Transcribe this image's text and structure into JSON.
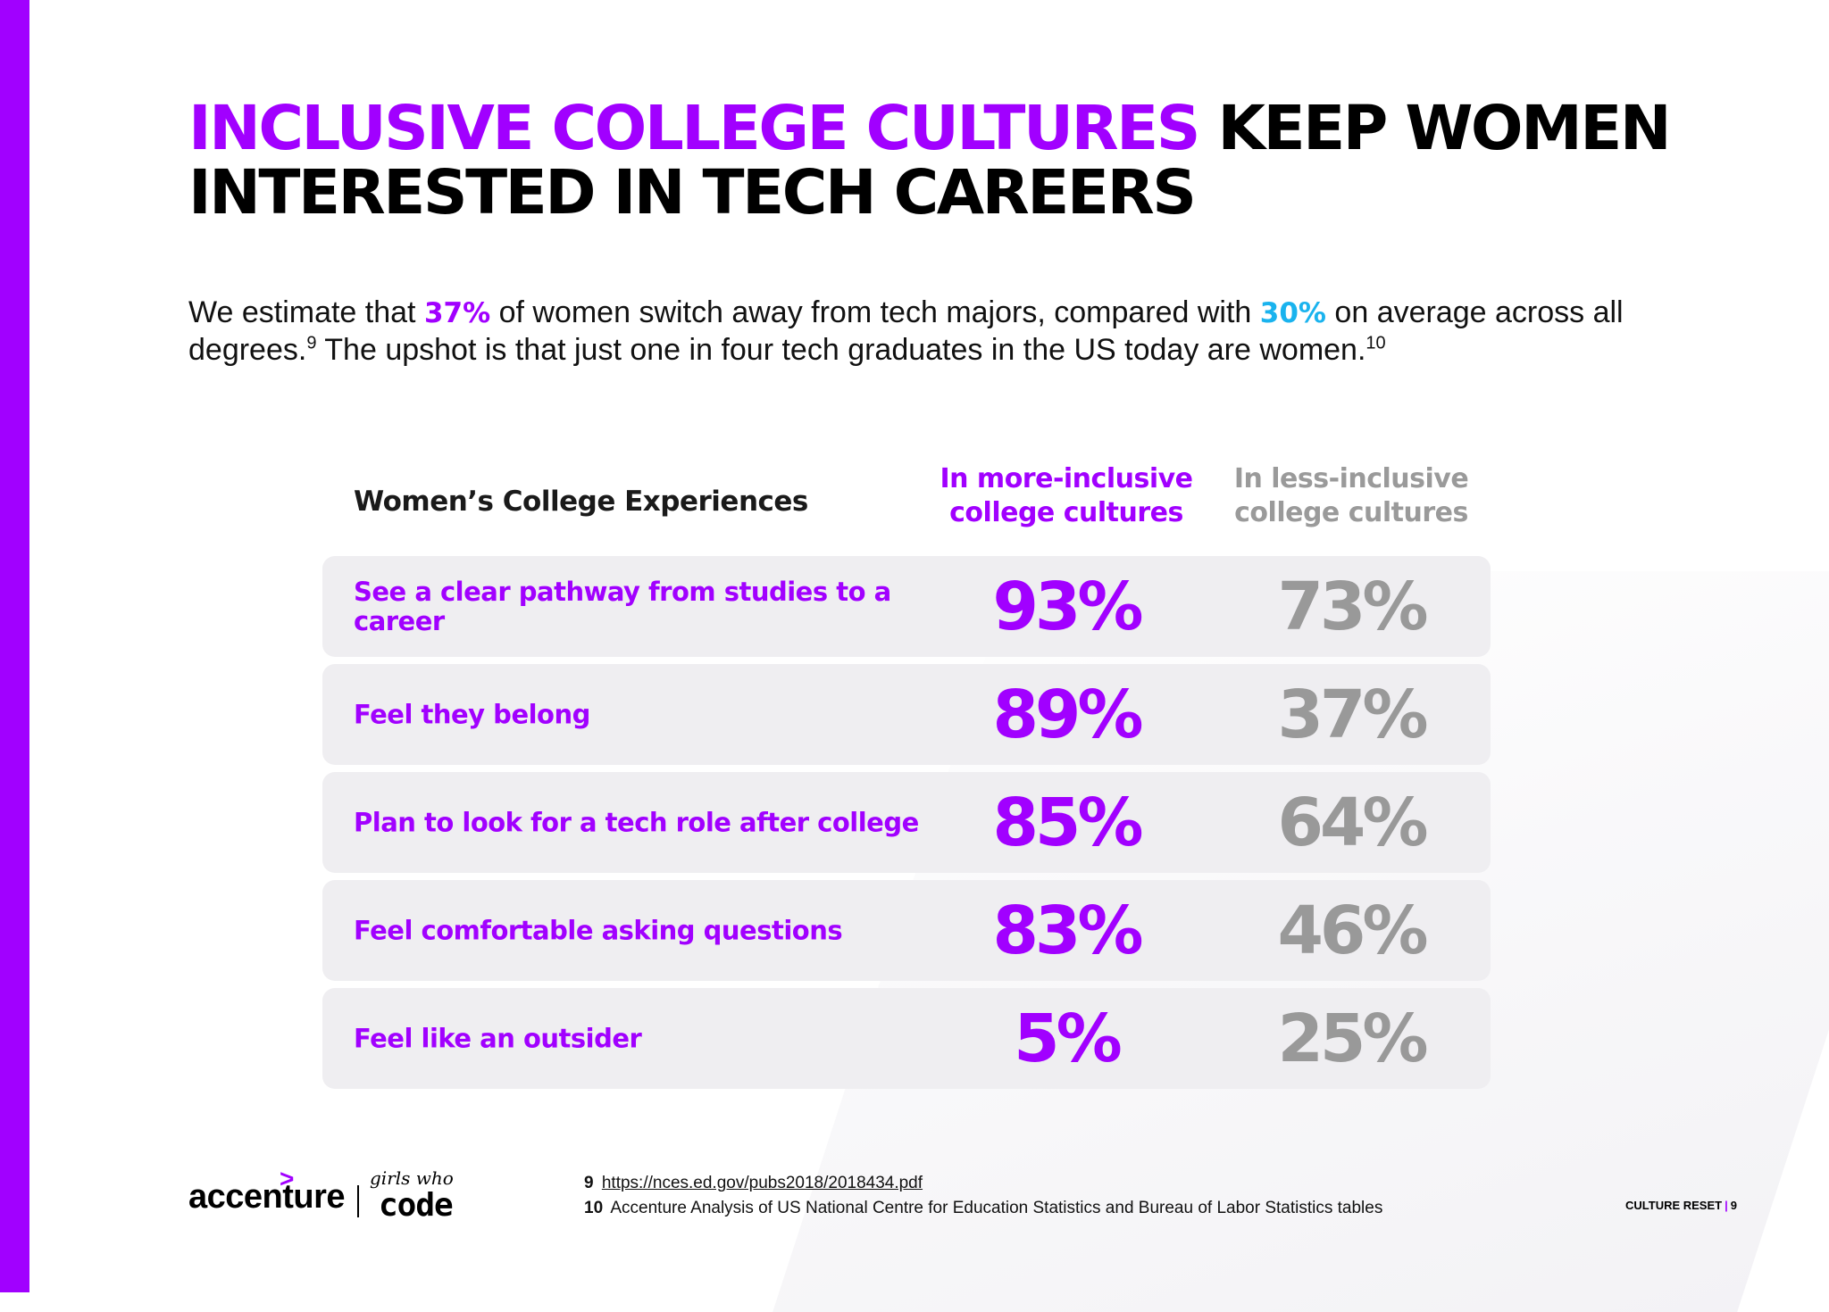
{
  "header": {
    "title_highlight": "INCLUSIVE COLLEGE CULTURES",
    "title_rest": "KEEP WOMEN INTERESTED IN TECH CAREERS"
  },
  "intro": {
    "part1": "We estimate that ",
    "stat1": "37%",
    "part2": " of women switch away from tech majors, compared with ",
    "stat2": "30%",
    "part3": " on average across all degrees.",
    "ref1": "9",
    "part4": " The upshot is that just one in four tech graduates in the US today are women.",
    "ref2": "10"
  },
  "table": {
    "row_header": "Women’s College Experiences",
    "col_more": "In more-inclusive college cultures",
    "col_less": "In less-inclusive college cultures",
    "rows": [
      {
        "label": "See a clear pathway from studies to a career",
        "more": "93%",
        "less": "73%"
      },
      {
        "label": "Feel they belong",
        "more": "89%",
        "less": "37%"
      },
      {
        "label": "Plan to look for a tech role after college",
        "more": "85%",
        "less": "64%"
      },
      {
        "label": "Feel comfortable asking questions",
        "more": "83%",
        "less": "46%"
      },
      {
        "label": "Feel like an outsider",
        "more": "5%",
        "less": "25%"
      }
    ]
  },
  "logos": {
    "accenture": "accenture",
    "accenture_mark": ">",
    "gwc_script": "girls who",
    "gwc_code": "code"
  },
  "footnotes": [
    {
      "num": "9",
      "text": "https://nces.ed.gov/pubs2018/2018434.pdf"
    },
    {
      "num": "10",
      "text": "Accenture Analysis of US National Centre for Education Statistics and Bureau of Labor Statistics tables"
    }
  ],
  "footer": {
    "section": "CULTURE RESET",
    "separator": "|",
    "page": "9"
  },
  "colors": {
    "accent_purple": "#a100ff",
    "accent_blue": "#1ab3ee",
    "muted_gray": "#999999",
    "row_bg": "#efeef1"
  }
}
